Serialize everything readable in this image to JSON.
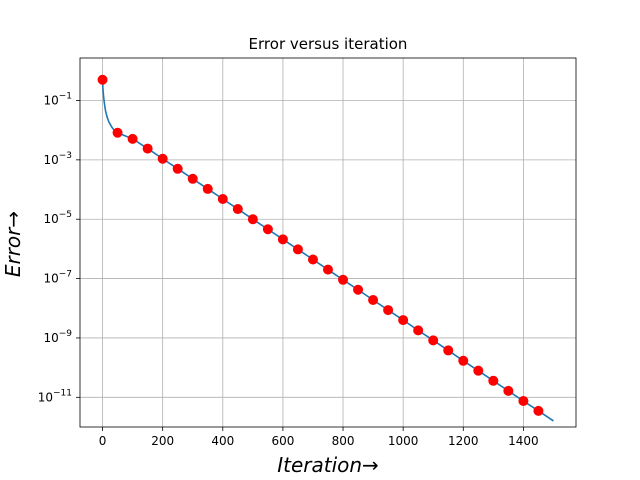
{
  "chart_data": {
    "type": "line",
    "title": "Error versus iteration",
    "xlabel": "Iteration→",
    "ylabel": "Error→",
    "xlim": [
      -75,
      1575
    ],
    "ylim": [
      1e-12,
      2.7
    ],
    "yscale": "log",
    "grid": true,
    "x_ticks": [
      0,
      200,
      400,
      600,
      800,
      1000,
      1200,
      1400
    ],
    "x_tick_labels": [
      "0",
      "200",
      "400",
      "600",
      "800",
      "1000",
      "1200",
      "1400"
    ],
    "y_ticks": [
      0.1,
      0.001,
      1e-05,
      1e-07,
      1e-09,
      1e-11
    ],
    "y_tick_labels": [
      {
        "base": "10",
        "exp": "−1"
      },
      {
        "base": "10",
        "exp": "−3"
      },
      {
        "base": "10",
        "exp": "−5"
      },
      {
        "base": "10",
        "exp": "−7"
      },
      {
        "base": "10",
        "exp": "−9"
      },
      {
        "base": "10",
        "exp": "−11"
      }
    ],
    "series": [
      {
        "kind": "line",
        "color": "#1f77b4",
        "x": [
          0,
          1,
          2,
          4,
          7,
          10,
          15,
          20,
          30,
          40,
          50,
          100,
          150,
          200,
          250,
          300,
          350,
          400,
          450,
          500,
          550,
          600,
          650,
          700,
          750,
          800,
          850,
          900,
          950,
          1000,
          1050,
          1100,
          1150,
          1200,
          1250,
          1300,
          1350,
          1400,
          1450,
          1500
        ],
        "y": [
          0.5,
          0.28,
          0.2,
          0.12,
          0.07,
          0.045,
          0.028,
          0.02,
          0.013,
          0.0095,
          0.0082,
          0.0051,
          0.0024,
          0.00109,
          0.0005,
          0.00023,
          0.000105,
          4.8e-05,
          2.2e-05,
          1e-05,
          4.6e-06,
          2.1e-06,
          9.6e-07,
          4.4e-07,
          2e-07,
          9.1e-08,
          4.2e-08,
          1.9e-08,
          8.7e-09,
          4e-09,
          1.8e-09,
          8.3e-10,
          3.8e-10,
          1.7e-10,
          7.9e-11,
          3.6e-11,
          1.65e-11,
          7.5e-12,
          3.5e-12,
          1.6e-12
        ]
      },
      {
        "kind": "markers",
        "color": "#ff0000",
        "x": [
          0,
          50,
          100,
          150,
          200,
          250,
          300,
          350,
          400,
          450,
          500,
          550,
          600,
          650,
          700,
          750,
          800,
          850,
          900,
          950,
          1000,
          1050,
          1100,
          1150,
          1200,
          1250,
          1300,
          1350,
          1400,
          1450
        ],
        "y": [
          0.5,
          0.0082,
          0.0051,
          0.0024,
          0.00109,
          0.0005,
          0.00023,
          0.000105,
          4.8e-05,
          2.2e-05,
          1e-05,
          4.6e-06,
          2.1e-06,
          9.6e-07,
          4.4e-07,
          2e-07,
          9.1e-08,
          4.2e-08,
          1.9e-08,
          8.7e-09,
          4e-09,
          1.8e-09,
          8.3e-10,
          3.8e-10,
          1.7e-10,
          7.9e-11,
          3.6e-11,
          1.65e-11,
          7.5e-12,
          3.5e-12
        ]
      }
    ]
  }
}
